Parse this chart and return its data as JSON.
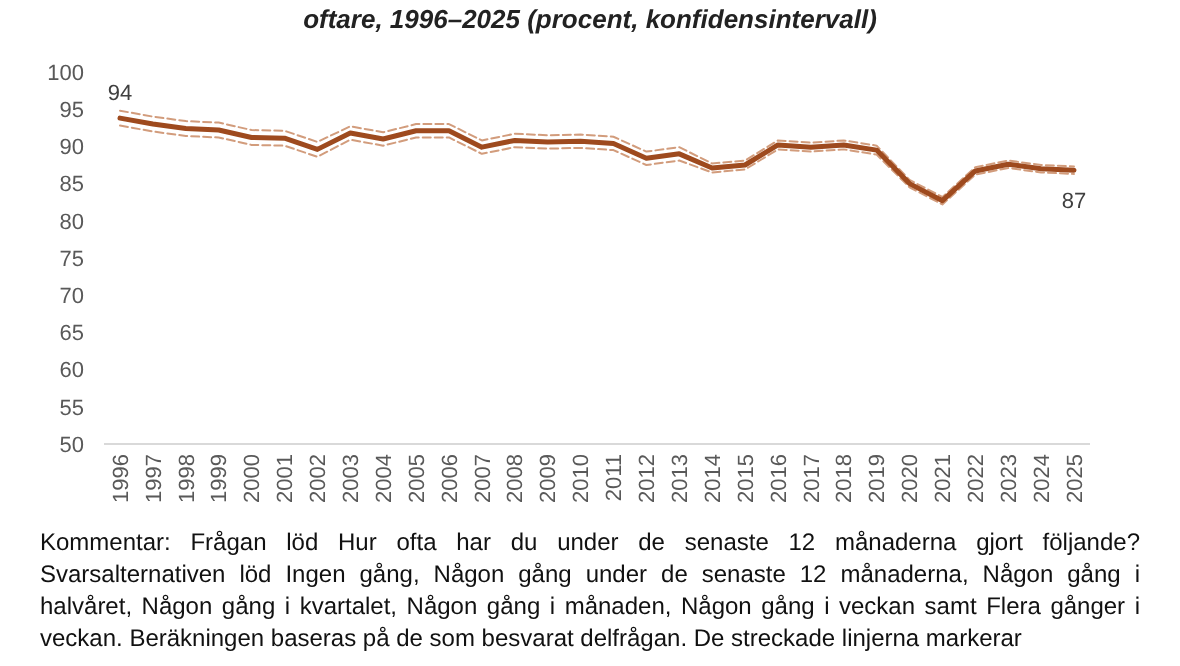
{
  "chart_data": {
    "type": "line",
    "title": "oftare, 1996–2025 (procent, konfidensintervall)",
    "categories": [
      "1996",
      "1997",
      "1998",
      "1999",
      "2000",
      "2001",
      "2002",
      "2003",
      "2004",
      "2005",
      "2006",
      "2007",
      "2008",
      "2009",
      "2010",
      "2011",
      "2012",
      "2013",
      "2014",
      "2015",
      "2016",
      "2017",
      "2018",
      "2019",
      "2020",
      "2021",
      "2022",
      "2023",
      "2024",
      "2025"
    ],
    "series": [
      {
        "color": "#d29c7c",
        "line_style": "dashed",
        "values": [
          94.8,
          94.0,
          93.4,
          93.2,
          92.2,
          92.1,
          90.6,
          92.7,
          91.9,
          93.0,
          93.0,
          90.8,
          91.7,
          91.5,
          91.6,
          91.3,
          89.3,
          89.9,
          87.7,
          88.1,
          90.8,
          90.5,
          90.8,
          90.1,
          85.5,
          83.2,
          87.2,
          88.1,
          87.5,
          87.3
        ]
      },
      {
        "color": "#d29c7c",
        "line_style": "dashed",
        "values": [
          92.8,
          92.0,
          91.4,
          91.2,
          90.2,
          90.1,
          88.6,
          90.9,
          90.1,
          91.2,
          91.2,
          89.0,
          89.9,
          89.7,
          89.8,
          89.5,
          87.5,
          88.1,
          86.5,
          86.9,
          89.6,
          89.3,
          89.6,
          88.9,
          84.5,
          82.2,
          86.2,
          87.1,
          86.5,
          86.3
        ]
      },
      {
        "color": "#9e4a1e",
        "line_style": "solid",
        "values": [
          93.8,
          93.0,
          92.4,
          92.2,
          91.2,
          91.1,
          89.6,
          91.8,
          91.0,
          92.1,
          92.1,
          89.9,
          90.8,
          90.6,
          90.7,
          90.4,
          88.4,
          89.0,
          87.1,
          87.5,
          90.2,
          89.9,
          90.2,
          89.5,
          85.0,
          82.7,
          86.7,
          87.6,
          87.0,
          86.8
        ],
        "value_labels": [
          "94",
          null,
          null,
          null,
          null,
          null,
          null,
          null,
          null,
          null,
          null,
          null,
          null,
          null,
          null,
          null,
          null,
          null,
          null,
          null,
          null,
          null,
          null,
          null,
          null,
          null,
          null,
          null,
          null,
          "87"
        ]
      }
    ],
    "ylim": [
      50,
      100
    ],
    "yticks": [
      50,
      55,
      60,
      65,
      70,
      75,
      80,
      85,
      90,
      95,
      100
    ],
    "annotations": [
      "Kommentar: Frågan löd Hur ofta har du under de senaste 12 månaderna gjort följande? Svarsalternativen löd Ingen gång, Någon gång under de senaste 12 månaderna, Någon gång i halvåret, Någon gång i kvartalet, Någon gång i månaden, Någon gång i veckan samt Flera gånger i veckan. Beräkningen baseras på de som besvarat delfrågan. De streckade linjerna markerar"
    ]
  }
}
